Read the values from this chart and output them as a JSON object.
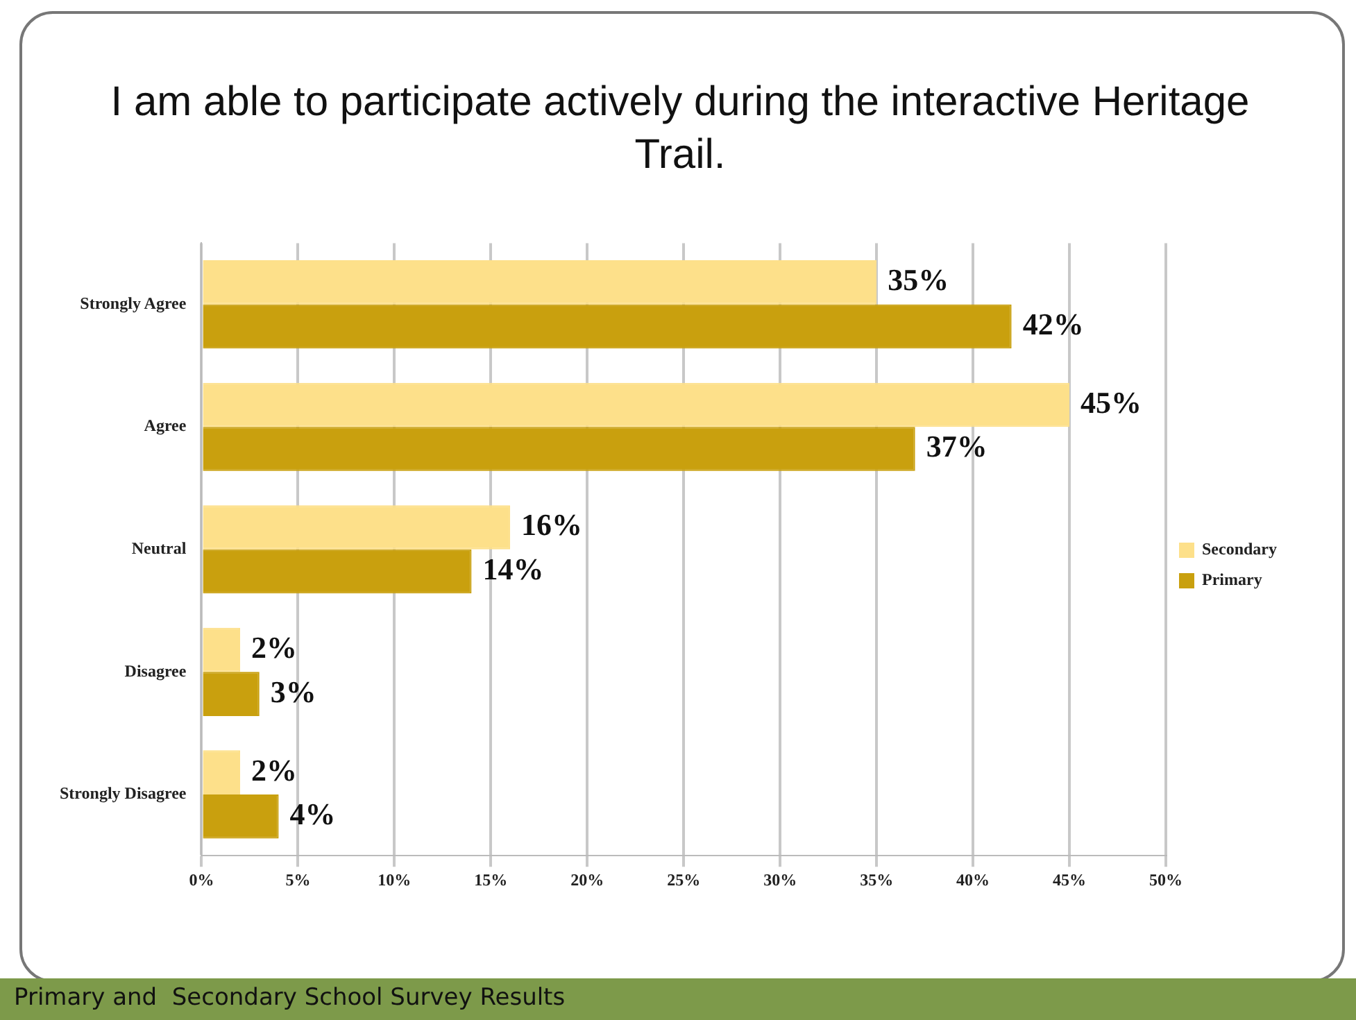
{
  "chart_data": {
    "type": "bar",
    "orientation": "horizontal",
    "title": "I am able to participate actively during the interactive Heritage Trail.",
    "categories": [
      "Strongly Agree",
      "Agree",
      "Neutral",
      "Disagree",
      "Strongly Disagree"
    ],
    "series": [
      {
        "name": "Secondary",
        "color": "#fde08a",
        "values": [
          35,
          45,
          16,
          2,
          2
        ],
        "value_labels": [
          "35%",
          "45%",
          "16%",
          "2%",
          "2%"
        ]
      },
      {
        "name": "Primary",
        "color": "#c9a00e",
        "values": [
          42,
          37,
          14,
          3,
          4
        ],
        "value_labels": [
          "42%",
          "37%",
          "14%",
          "3%",
          "4%"
        ]
      }
    ],
    "xlim": [
      0,
      50
    ],
    "xticks": [
      {
        "value": 0,
        "label": "0%"
      },
      {
        "value": 5,
        "label": "5%"
      },
      {
        "value": 10,
        "label": "10%"
      },
      {
        "value": 15,
        "label": "15%"
      },
      {
        "value": 20,
        "label": "20%"
      },
      {
        "value": 25,
        "label": "25%"
      },
      {
        "value": 30,
        "label": "30%"
      },
      {
        "value": 35,
        "label": "35%"
      },
      {
        "value": 40,
        "label": "40%"
      },
      {
        "value": 45,
        "label": "45%"
      },
      {
        "value": 50,
        "label": "50%"
      }
    ],
    "grid": "x",
    "legend": "right",
    "annotations": [
      "Primary and  Secondary School Survey Results"
    ]
  }
}
